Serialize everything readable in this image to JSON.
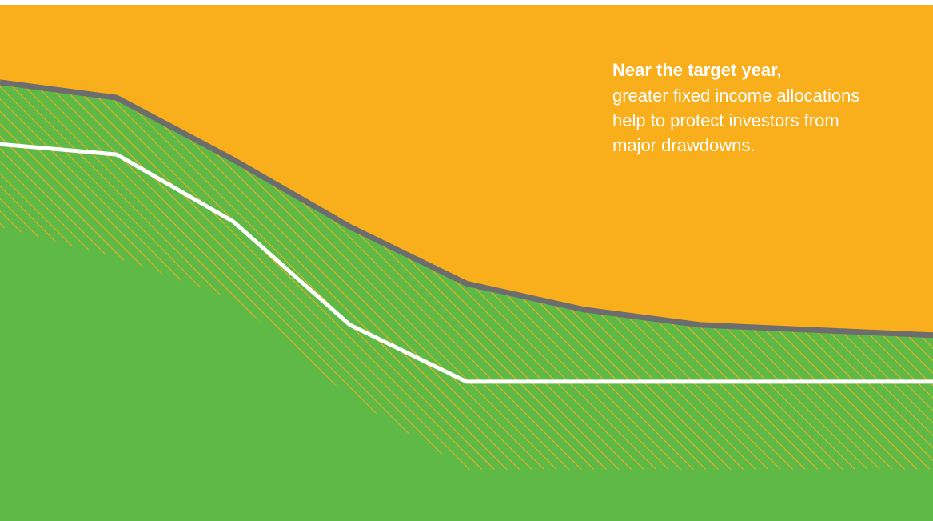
{
  "colors": {
    "background": "#ffffff",
    "equity_area": "#f9ae1b",
    "fixed_income_area": "#5fb946",
    "hatch_line": "#f9ae1b",
    "upper_line": "#6d6d6d",
    "lower_line": "#ffffff"
  },
  "callout": {
    "title": "Near the target year,",
    "lines": [
      "greater fixed income allocations",
      "help to protect investors from",
      "major drawdowns."
    ]
  },
  "chart_data": {
    "type": "area",
    "title": "",
    "xlabel": "",
    "ylabel": "",
    "grid": false,
    "legend": "none",
    "x": [
      0,
      1,
      2,
      3,
      4,
      5,
      6,
      7,
      8
    ],
    "xlim": [
      0,
      8
    ],
    "ylim": [
      0,
      100
    ],
    "series": [
      {
        "values": [
          85,
          82,
          70,
          57,
          46,
          41,
          38,
          37,
          36
        ]
      },
      {
        "values": [
          73,
          71,
          58,
          38,
          27,
          27,
          27,
          27,
          27
        ]
      },
      {
        "values": [
          57,
          51,
          43,
          24,
          10,
          10,
          10,
          10,
          10
        ]
      }
    ]
  }
}
